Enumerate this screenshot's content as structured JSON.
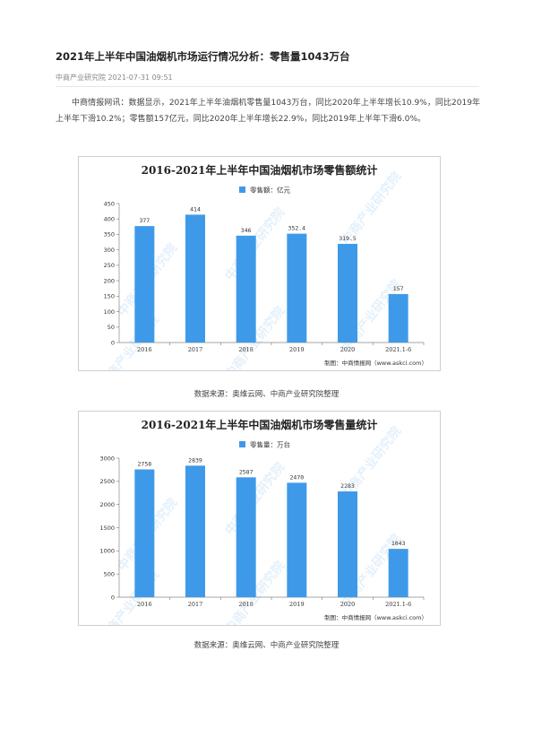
{
  "article": {
    "title": "2021年上半年中国油烟机市场运行情况分析：零售量1043万台",
    "source": "中商产业研究院",
    "datetime": "2021-07-31 09:51",
    "paragraph": "中商情报网讯：数据显示，2021年上半年油烟机零售量1043万台，同比2020年上半年增长10.9%，同比2019年上半年下滑10.2%；零售额157亿元，同比2020年上半年增长22.9%，同比2019年上半年下滑6.0%。"
  },
  "watermark": "中商产业研究院",
  "captions": [
    "数据来源：奥维云网、中商产业研究院整理",
    "数据来源：奥维云网、中商产业研究院整理"
  ],
  "colors": {
    "bar": "#3e9ae8",
    "legend": "#3e9ae8"
  },
  "chart_data": [
    {
      "type": "bar",
      "title": "2016-2021年上半年中国油烟机市场零售额统计",
      "categories": [
        "2016",
        "2017",
        "2018",
        "2019",
        "2020",
        "2021.1-6"
      ],
      "series": [
        {
          "name": "零售额：亿元",
          "values": [
            377,
            414,
            346,
            352.4,
            319.5,
            157
          ]
        }
      ],
      "value_labels": [
        "377",
        "414",
        "346",
        "352.4",
        "319.5",
        "157"
      ],
      "ylim": [
        0,
        450
      ],
      "yticks": [
        0,
        50,
        100,
        150,
        200,
        250,
        300,
        350,
        400,
        450
      ],
      "xlabel": "",
      "ylabel": "",
      "grid": false,
      "legend": "top-center",
      "credit": "制图：中商情报网（www.askci.com）"
    },
    {
      "type": "bar",
      "title": "2016-2021年上半年中国油烟机市场零售量统计",
      "categories": [
        "2016",
        "2017",
        "2018",
        "2019",
        "2020",
        "2021.1-6"
      ],
      "series": [
        {
          "name": "零售量：万台",
          "values": [
            2758,
            2839,
            2587,
            2470,
            2283,
            1043
          ]
        }
      ],
      "value_labels": [
        "2758",
        "2839",
        "2587",
        "2470",
        "2283",
        "1043"
      ],
      "ylim": [
        0,
        3000
      ],
      "yticks": [
        0,
        500,
        1000,
        1500,
        2000,
        2500,
        3000
      ],
      "xlabel": "",
      "ylabel": "",
      "grid": false,
      "legend": "top-center",
      "credit": "制图：中商情报网（www.askci.com）"
    }
  ]
}
